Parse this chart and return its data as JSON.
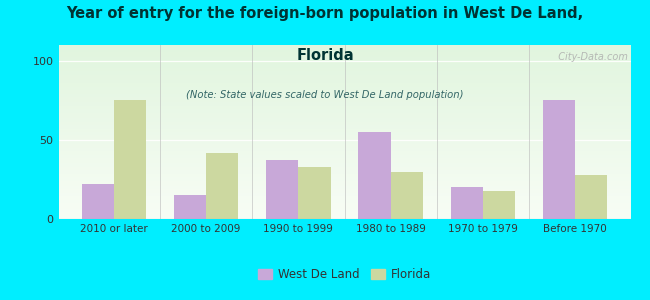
{
  "categories": [
    "2010 or later",
    "2000 to 2009",
    "1990 to 1999",
    "1980 to 1989",
    "1970 to 1979",
    "Before 1970"
  ],
  "west_de_land": [
    22,
    15,
    37,
    55,
    20,
    75
  ],
  "florida": [
    75,
    42,
    33,
    30,
    18,
    28
  ],
  "west_color": "#c8a8d8",
  "florida_color": "#ccd8a0",
  "title_line1": "Year of entry for the foreign-born population in West De Land,",
  "title_line2": "Florida",
  "subtitle": "(Note: State values scaled to West De Land population)",
  "legend_west": "West De Land",
  "legend_florida": "Florida",
  "ylim": [
    0,
    110
  ],
  "yticks": [
    0,
    50,
    100
  ],
  "background_color": "#00eeff",
  "watermark": "  City-Data.com",
  "bar_width": 0.35,
  "title_color": "#003333",
  "subtitle_color": "#336666",
  "tick_color": "#333333"
}
